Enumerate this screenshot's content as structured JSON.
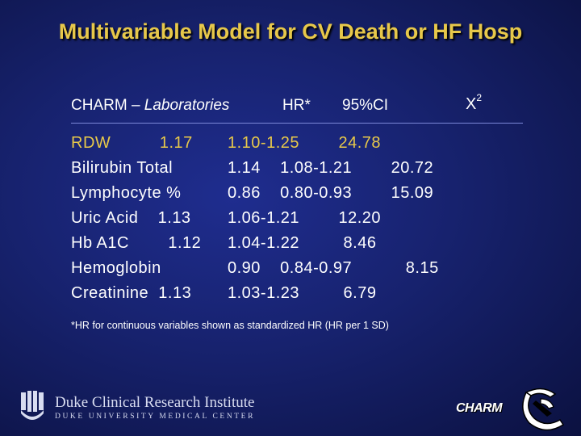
{
  "title": "Multivariable Model for CV Death or HF Hosp",
  "header": {
    "lead": "CHARM – ",
    "lab": "Laboratories",
    "hr": "HR*",
    "ci": "95%CI",
    "chi": "X",
    "chi_sup": "2"
  },
  "rows": [
    {
      "left": "RDW          1.17",
      "right": "1.10-1.25        24.78"
    },
    {
      "left": "Bilirubin Total",
      "right": "1.14    1.08-1.21        20.72"
    },
    {
      "left": "Lymphocyte %",
      "right": "0.86    0.80-0.93        15.09"
    },
    {
      "left": "Uric Acid    1.13",
      "right": "1.06-1.21        12.20"
    },
    {
      "left": "Hb A1C        1.12",
      "right": "1.04-1.22         8.46"
    },
    {
      "left": "Hemoglobin",
      "right": "0.90    0.84-0.97           8.15"
    },
    {
      "left": "Creatinine  1.13",
      "right": "1.03-1.23         6.79"
    }
  ],
  "footnote": "*HR for continuous variables shown as standardized HR (HR per 1 SD)",
  "branding": {
    "institute": "Duke Clinical Research Institute",
    "center": "DUKE UNIVERSITY MEDICAL CENTER",
    "charm": "CHARM"
  },
  "colors": {
    "title": "#e7c84a",
    "highlight_row": "#e7c84a",
    "background": "#17226e"
  }
}
